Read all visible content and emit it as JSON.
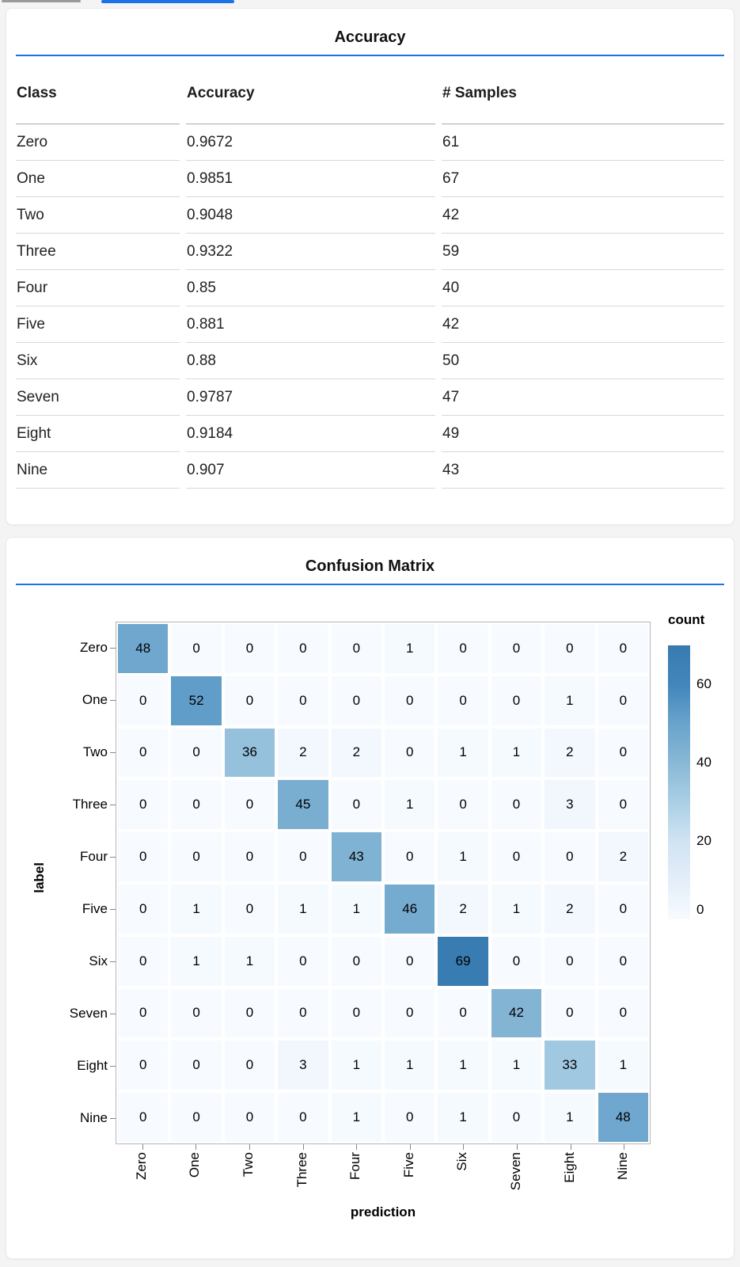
{
  "page": {
    "background": "#f4f4f4",
    "accent_blue": "#1a73e8"
  },
  "tab_indicators": {
    "inactive_color": "#9a9a9a",
    "active_color": "#1a73e8"
  },
  "accuracy_panel": {
    "title": "Accuracy",
    "columns": [
      "Class",
      "Accuracy",
      "# Samples"
    ],
    "rows": [
      [
        "Zero",
        "0.9672",
        "61"
      ],
      [
        "One",
        "0.9851",
        "67"
      ],
      [
        "Two",
        "0.9048",
        "42"
      ],
      [
        "Three",
        "0.9322",
        "59"
      ],
      [
        "Four",
        "0.85",
        "40"
      ],
      [
        "Five",
        "0.881",
        "42"
      ],
      [
        "Six",
        "0.88",
        "50"
      ],
      [
        "Seven",
        "0.9787",
        "47"
      ],
      [
        "Eight",
        "0.9184",
        "49"
      ],
      [
        "Nine",
        "0.907",
        "43"
      ]
    ]
  },
  "confusion_panel": {
    "title": "Confusion Matrix",
    "x_title": "prediction",
    "y_title": "label",
    "legend": {
      "title": "count",
      "ticks": [
        "60",
        "40",
        "20",
        "0"
      ]
    },
    "classes": [
      "Zero",
      "One",
      "Two",
      "Three",
      "Four",
      "Five",
      "Six",
      "Seven",
      "Eight",
      "Nine"
    ],
    "matrix": [
      [
        48,
        0,
        0,
        0,
        0,
        1,
        0,
        0,
        0,
        0
      ],
      [
        0,
        52,
        0,
        0,
        0,
        0,
        0,
        0,
        1,
        0
      ],
      [
        0,
        0,
        36,
        2,
        2,
        0,
        1,
        1,
        2,
        0
      ],
      [
        0,
        0,
        0,
        45,
        0,
        1,
        0,
        0,
        3,
        0
      ],
      [
        0,
        0,
        0,
        0,
        43,
        0,
        1,
        0,
        0,
        2
      ],
      [
        0,
        1,
        0,
        1,
        1,
        46,
        2,
        1,
        2,
        0
      ],
      [
        0,
        1,
        1,
        0,
        0,
        0,
        69,
        0,
        0,
        0
      ],
      [
        0,
        0,
        0,
        0,
        0,
        0,
        0,
        42,
        0,
        0
      ],
      [
        0,
        0,
        0,
        3,
        1,
        1,
        1,
        1,
        33,
        1
      ],
      [
        0,
        0,
        0,
        0,
        1,
        0,
        1,
        0,
        1,
        48
      ]
    ],
    "color_scale": {
      "scheme": "blues",
      "domain": [
        0,
        70
      ],
      "stops": [
        [
          0,
          [
            247,
            251,
            255
          ]
        ],
        [
          10,
          [
            227,
            238,
            249
          ]
        ],
        [
          20,
          [
            209,
            227,
            243
          ]
        ],
        [
          30,
          [
            170,
            207,
            229
          ]
        ],
        [
          40,
          [
            137,
            184,
            214
          ]
        ],
        [
          50,
          [
            105,
            163,
            204
          ]
        ],
        [
          60,
          [
            66,
            134,
            187
          ]
        ],
        [
          70,
          [
            56,
            123,
            176
          ]
        ]
      ]
    }
  },
  "chart_data": [
    {
      "type": "table",
      "title": "Accuracy",
      "columns": [
        "Class",
        "Accuracy",
        "# Samples"
      ],
      "rows": [
        [
          "Zero",
          0.9672,
          61
        ],
        [
          "One",
          0.9851,
          67
        ],
        [
          "Two",
          0.9048,
          42
        ],
        [
          "Three",
          0.9322,
          59
        ],
        [
          "Four",
          0.85,
          40
        ],
        [
          "Five",
          0.881,
          42
        ],
        [
          "Six",
          0.88,
          50
        ],
        [
          "Seven",
          0.9787,
          47
        ],
        [
          "Eight",
          0.9184,
          49
        ],
        [
          "Nine",
          0.907,
          43
        ]
      ]
    },
    {
      "type": "heatmap",
      "title": "Confusion Matrix",
      "xlabel": "prediction",
      "ylabel": "label",
      "x": [
        "Zero",
        "One",
        "Two",
        "Three",
        "Four",
        "Five",
        "Six",
        "Seven",
        "Eight",
        "Nine"
      ],
      "y": [
        "Zero",
        "One",
        "Two",
        "Three",
        "Four",
        "Five",
        "Six",
        "Seven",
        "Eight",
        "Nine"
      ],
      "values": [
        [
          48,
          0,
          0,
          0,
          0,
          1,
          0,
          0,
          0,
          0
        ],
        [
          0,
          52,
          0,
          0,
          0,
          0,
          0,
          0,
          1,
          0
        ],
        [
          0,
          0,
          36,
          2,
          2,
          0,
          1,
          1,
          2,
          0
        ],
        [
          0,
          0,
          0,
          45,
          0,
          1,
          0,
          0,
          3,
          0
        ],
        [
          0,
          0,
          0,
          0,
          43,
          0,
          1,
          0,
          0,
          2
        ],
        [
          0,
          1,
          0,
          1,
          1,
          46,
          2,
          1,
          2,
          0
        ],
        [
          0,
          1,
          1,
          0,
          0,
          0,
          69,
          0,
          0,
          0
        ],
        [
          0,
          0,
          0,
          0,
          0,
          0,
          0,
          42,
          0,
          0
        ],
        [
          0,
          0,
          0,
          3,
          1,
          1,
          1,
          1,
          33,
          1
        ],
        [
          0,
          0,
          0,
          0,
          1,
          0,
          1,
          0,
          1,
          48
        ]
      ],
      "legend_title": "count",
      "legend_ticks": [
        60,
        40,
        20,
        0
      ],
      "color_range": [
        0,
        70
      ],
      "colormap": "blues"
    }
  ]
}
